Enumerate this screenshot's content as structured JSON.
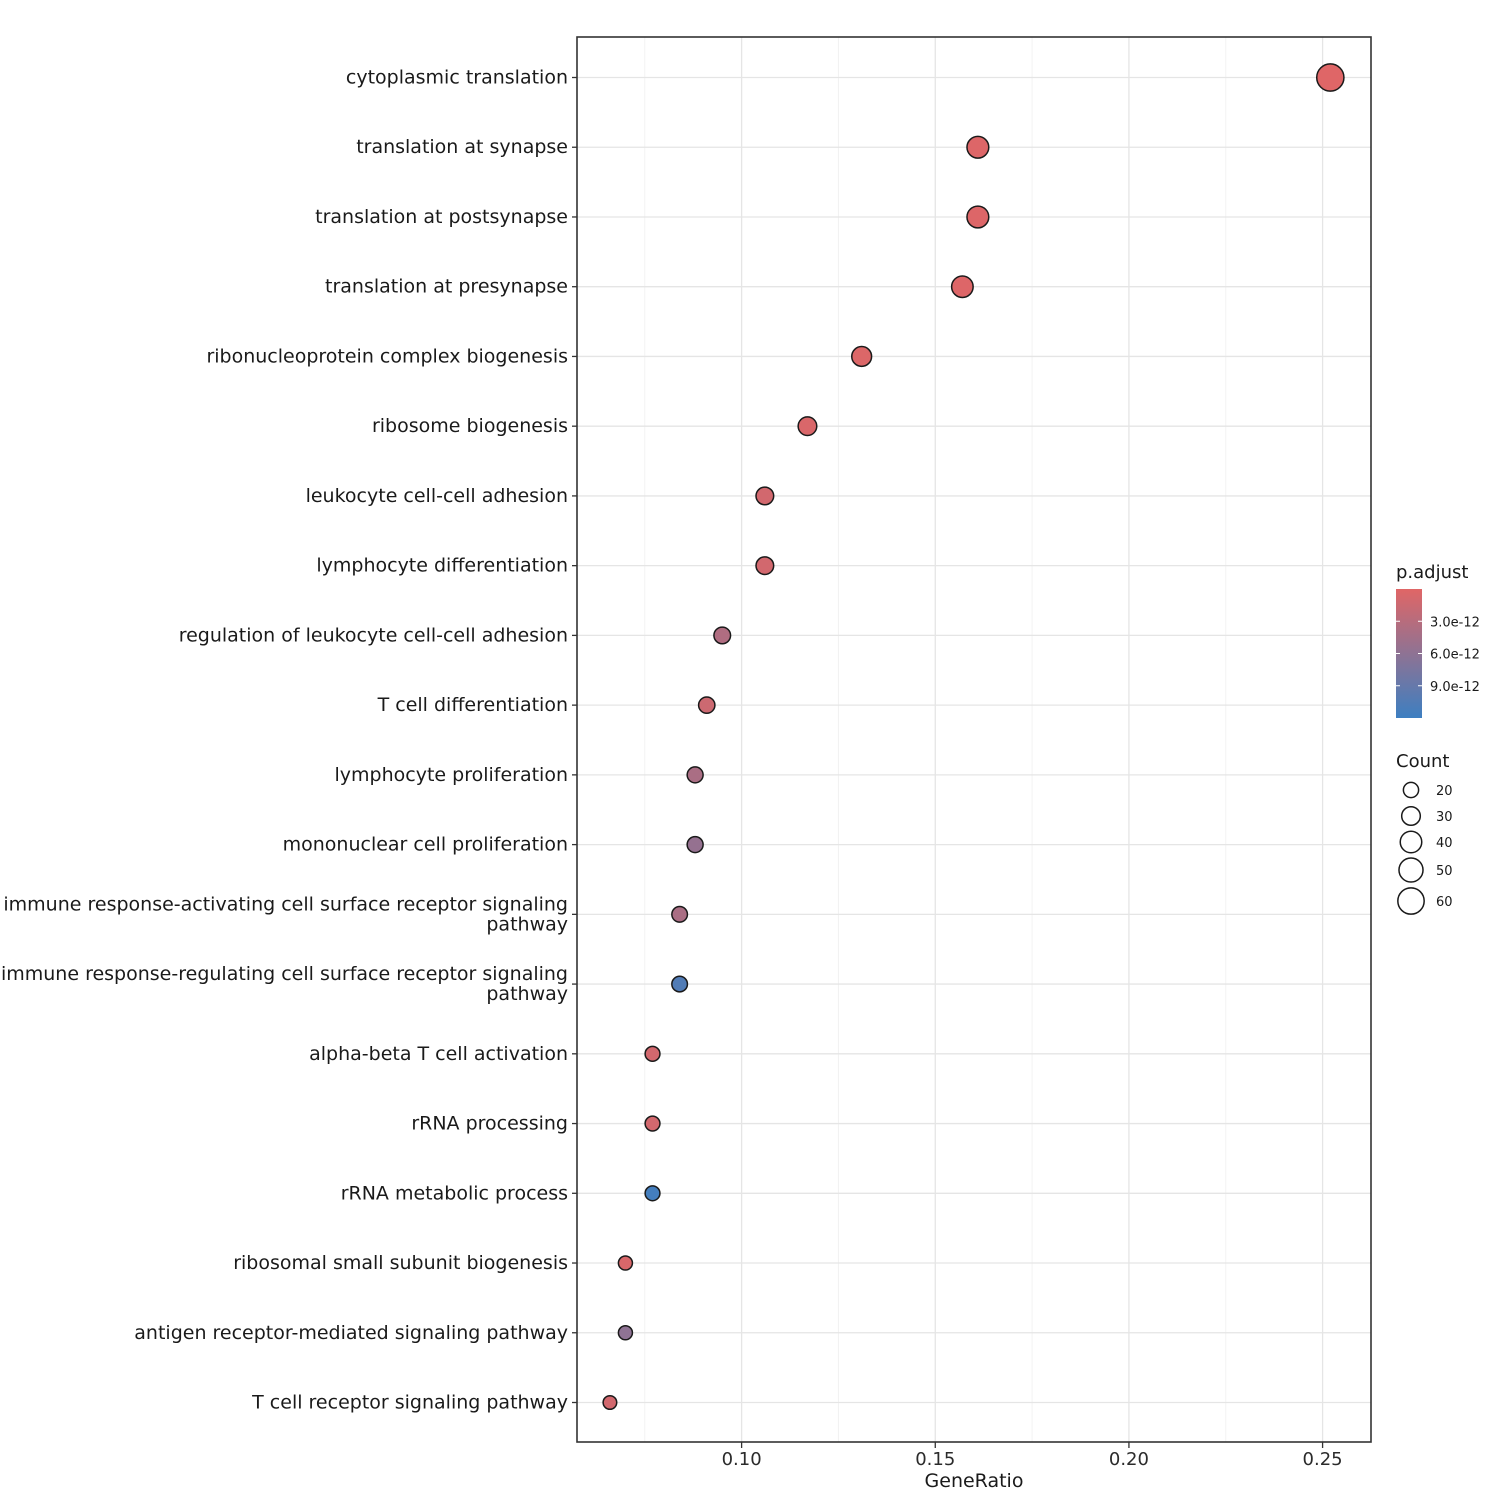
{
  "chart_data": {
    "type": "scatter",
    "xlabel": "GeneRatio",
    "ylabel": "",
    "xlim": [
      0.0575,
      0.2625
    ],
    "xticks": [
      0.1,
      0.15,
      0.2,
      0.25
    ],
    "xtick_labels": [
      "0.10",
      "0.15",
      "0.20",
      "0.25"
    ],
    "grid": true,
    "points": [
      {
        "term": [
          "cytoplasmic translation"
        ],
        "gene_ratio": 0.252,
        "count": 64,
        "p_adjust": 1e-13
      },
      {
        "term": [
          "translation at synapse"
        ],
        "gene_ratio": 0.161,
        "count": 41,
        "p_adjust": 2e-13
      },
      {
        "term": [
          "translation at postsynapse"
        ],
        "gene_ratio": 0.161,
        "count": 41,
        "p_adjust": 2e-13
      },
      {
        "term": [
          "translation at presynapse"
        ],
        "gene_ratio": 0.157,
        "count": 40,
        "p_adjust": 2e-13
      },
      {
        "term": [
          "ribonucleoprotein complex biogenesis"
        ],
        "gene_ratio": 0.131,
        "count": 34,
        "p_adjust": 3e-13
      },
      {
        "term": [
          "ribosome biogenesis"
        ],
        "gene_ratio": 0.117,
        "count": 30,
        "p_adjust": 5e-13
      },
      {
        "term": [
          "leukocyte cell-cell adhesion"
        ],
        "gene_ratio": 0.106,
        "count": 27,
        "p_adjust": 1e-12
      },
      {
        "term": [
          "lymphocyte differentiation"
        ],
        "gene_ratio": 0.106,
        "count": 27,
        "p_adjust": 1e-12
      },
      {
        "term": [
          "regulation of leukocyte cell-cell adhesion"
        ],
        "gene_ratio": 0.095,
        "count": 24,
        "p_adjust": 3.5e-12
      },
      {
        "term": [
          "T cell differentiation"
        ],
        "gene_ratio": 0.091,
        "count": 23,
        "p_adjust": 1.5e-12
      },
      {
        "term": [
          "lymphocyte proliferation"
        ],
        "gene_ratio": 0.088,
        "count": 22,
        "p_adjust": 4e-12
      },
      {
        "term": [
          "mononuclear cell proliferation"
        ],
        "gene_ratio": 0.088,
        "count": 22,
        "p_adjust": 5.5e-12
      },
      {
        "term": [
          "immune response-activating cell surface receptor signaling",
          "pathway"
        ],
        "gene_ratio": 0.084,
        "count": 21,
        "p_adjust": 4e-12
      },
      {
        "term": [
          "immune response-regulating cell surface receptor signaling",
          "pathway"
        ],
        "gene_ratio": 0.084,
        "count": 21,
        "p_adjust": 1.05e-11
      },
      {
        "term": [
          "alpha-beta T cell activation"
        ],
        "gene_ratio": 0.077,
        "count": 19,
        "p_adjust": 1e-12
      },
      {
        "term": [
          "rRNA processing"
        ],
        "gene_ratio": 0.077,
        "count": 19,
        "p_adjust": 1e-12
      },
      {
        "term": [
          "rRNA metabolic process"
        ],
        "gene_ratio": 0.077,
        "count": 19,
        "p_adjust": 1.15e-11
      },
      {
        "term": [
          "ribosomal small subunit biogenesis"
        ],
        "gene_ratio": 0.07,
        "count": 17,
        "p_adjust": 5e-13
      },
      {
        "term": [
          "antigen receptor-mediated signaling pathway"
        ],
        "gene_ratio": 0.07,
        "count": 17,
        "p_adjust": 6e-12
      },
      {
        "term": [
          "T cell receptor signaling pathway"
        ],
        "gene_ratio": 0.066,
        "count": 16,
        "p_adjust": 1e-12
      }
    ],
    "color_legend": {
      "title": "p.adjust",
      "range": [
        0,
        1.2e-11
      ],
      "high_color": "#e06666",
      "low_color": "#3d7fc1",
      "ticks": [
        3e-12,
        6e-12,
        9e-12
      ],
      "tick_labels": [
        "3.0e-12",
        "6.0e-12",
        "9.0e-12"
      ]
    },
    "size_legend": {
      "title": "Count",
      "values": [
        20,
        30,
        40,
        50,
        60
      ],
      "labels": [
        "20",
        "30",
        "40",
        "50",
        "60"
      ]
    }
  }
}
